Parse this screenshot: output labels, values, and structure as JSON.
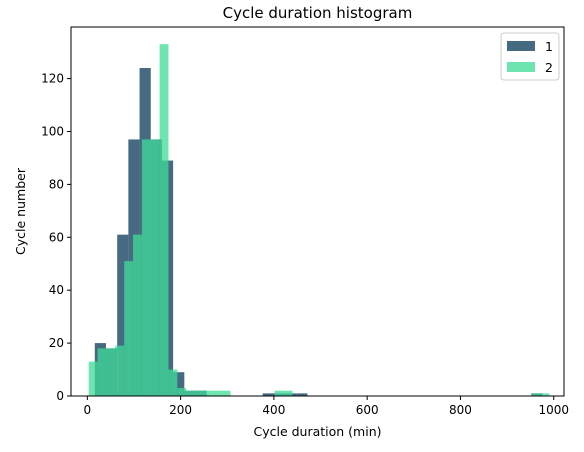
{
  "chart_data": {
    "type": "bar",
    "title": "Cycle duration histogram",
    "xlabel": "Cycle duration (min)",
    "ylabel": "Cycle number",
    "xlim": [
      -35,
      1022
    ],
    "ylim": [
      0,
      139.5
    ],
    "xticks": [
      0,
      200,
      400,
      600,
      800,
      1000
    ],
    "yticks": [
      0,
      20,
      40,
      60,
      80,
      100,
      120
    ],
    "grid": false,
    "legend_position": "top-right",
    "colors": {
      "1": "#2e5572",
      "2": "#3ddc97"
    },
    "series": [
      {
        "name": "1",
        "bins": [
          {
            "x0": 16,
            "x1": 40,
            "count": 20
          },
          {
            "x0": 40,
            "x1": 64,
            "count": 18
          },
          {
            "x0": 64,
            "x1": 88,
            "count": 61
          },
          {
            "x0": 88,
            "x1": 112,
            "count": 97
          },
          {
            "x0": 112,
            "x1": 136,
            "count": 124
          },
          {
            "x0": 136,
            "x1": 160,
            "count": 97
          },
          {
            "x0": 160,
            "x1": 184,
            "count": 89
          },
          {
            "x0": 184,
            "x1": 208,
            "count": 9
          },
          {
            "x0": 208,
            "x1": 232,
            "count": 2
          },
          {
            "x0": 232,
            "x1": 256,
            "count": 2
          },
          {
            "x0": 376,
            "x1": 400,
            "count": 1
          },
          {
            "x0": 400,
            "x1": 424,
            "count": 1
          },
          {
            "x0": 424,
            "x1": 448,
            "count": 1
          },
          {
            "x0": 448,
            "x1": 472,
            "count": 1
          },
          {
            "x0": 952,
            "x1": 976,
            "count": 1
          }
        ]
      },
      {
        "name": "2",
        "bins": [
          {
            "x0": 3,
            "x1": 22,
            "count": 13
          },
          {
            "x0": 22,
            "x1": 41,
            "count": 18
          },
          {
            "x0": 41,
            "x1": 60,
            "count": 18
          },
          {
            "x0": 60,
            "x1": 79,
            "count": 19
          },
          {
            "x0": 79,
            "x1": 98,
            "count": 51
          },
          {
            "x0": 98,
            "x1": 117,
            "count": 61
          },
          {
            "x0": 117,
            "x1": 136,
            "count": 97
          },
          {
            "x0": 136,
            "x1": 155,
            "count": 97
          },
          {
            "x0": 155,
            "x1": 174,
            "count": 133
          },
          {
            "x0": 174,
            "x1": 193,
            "count": 10
          },
          {
            "x0": 193,
            "x1": 212,
            "count": 3
          },
          {
            "x0": 212,
            "x1": 231,
            "count": 2
          },
          {
            "x0": 231,
            "x1": 250,
            "count": 2
          },
          {
            "x0": 250,
            "x1": 269,
            "count": 2
          },
          {
            "x0": 269,
            "x1": 288,
            "count": 2
          },
          {
            "x0": 288,
            "x1": 307,
            "count": 2
          },
          {
            "x0": 402,
            "x1": 421,
            "count": 2
          },
          {
            "x0": 421,
            "x1": 440,
            "count": 2
          },
          {
            "x0": 953,
            "x1": 972,
            "count": 1
          },
          {
            "x0": 972,
            "x1": 991,
            "count": 1
          }
        ]
      }
    ]
  }
}
